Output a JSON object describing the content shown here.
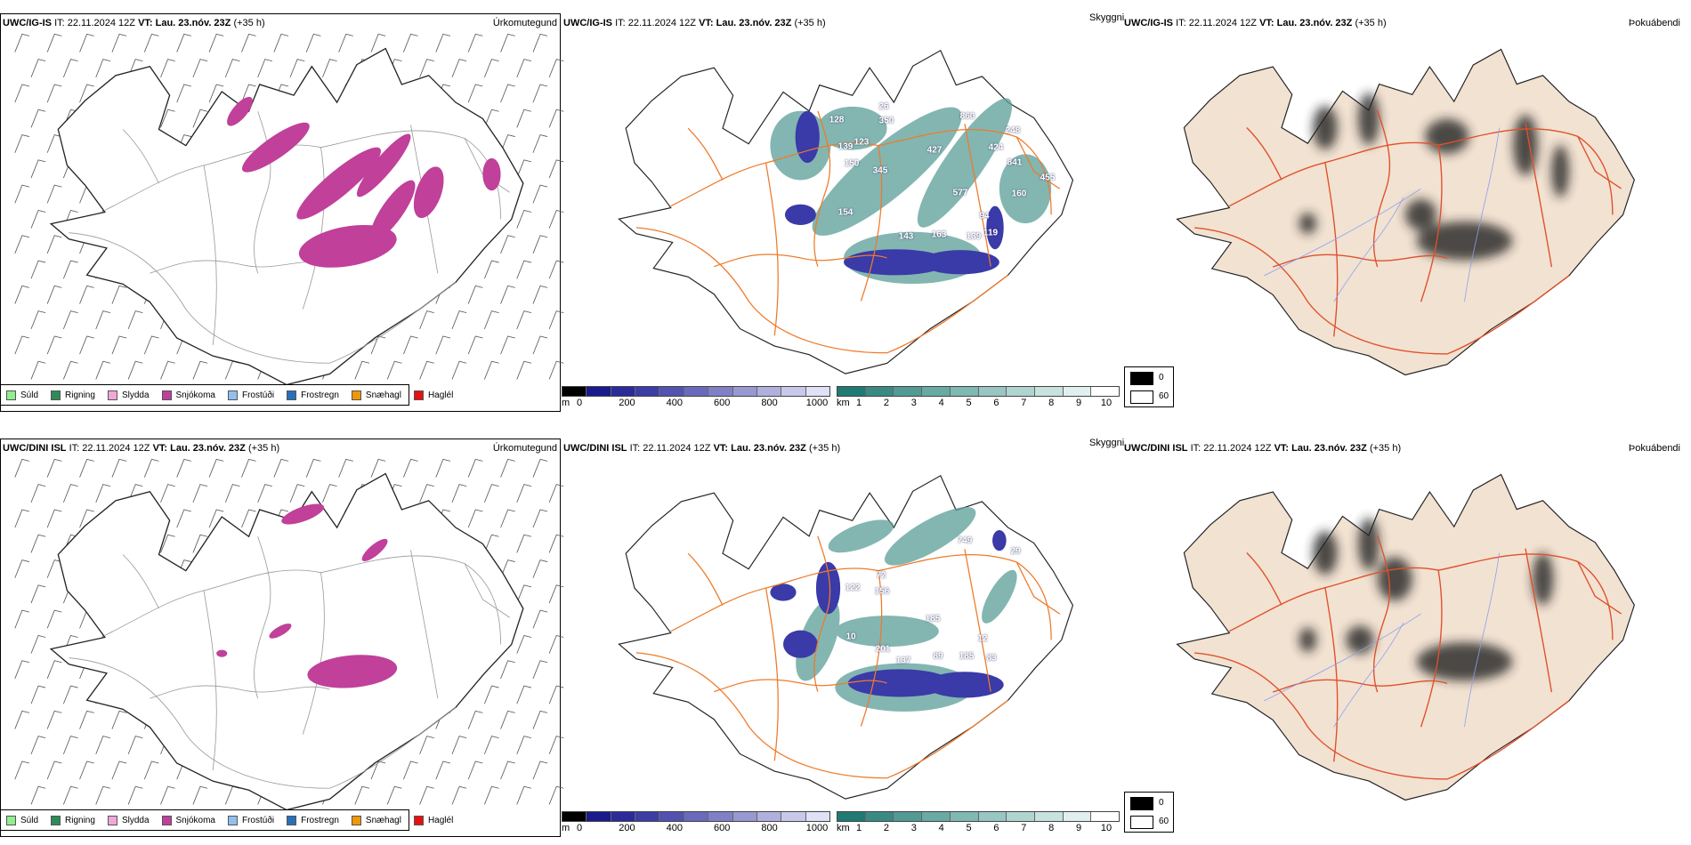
{
  "rows": [
    {
      "panels": [
        {
          "model": "UWC/IG-IS",
          "it_label": "IT:",
          "it_value": "22.11.2024 12Z",
          "vt_label": "VT:",
          "vt_value": "Lau. 23.nóv. 23Z",
          "lead": "(+35 h)",
          "title": "Úrkomutegund"
        },
        {
          "model": "UWC/IG-IS",
          "it_label": "IT:",
          "it_value": "22.11.2024 12Z",
          "vt_label": "VT:",
          "vt_value": "Lau. 23.nóv. 23Z",
          "lead": "(+35 h)",
          "title": "Skyggni"
        },
        {
          "model": "UWC/IG-IS",
          "it_label": "IT:",
          "it_value": "22.11.2024 12Z",
          "vt_label": "VT:",
          "vt_value": "Lau. 23.nóv. 23Z",
          "lead": "(+35 h)",
          "title": "Þokuábendi"
        }
      ],
      "visibility_labels": [
        "128",
        "26",
        "350",
        "139",
        "123",
        "150",
        "345",
        "860",
        "427",
        "424",
        "248",
        "841",
        "455",
        "577",
        "160",
        "154",
        "143",
        "163",
        "139",
        "119",
        "94"
      ]
    },
    {
      "panels": [
        {
          "model": "UWC/DINI ISL",
          "it_label": "IT:",
          "it_value": "22.11.2024 12Z",
          "vt_label": "VT:",
          "vt_value": "Lau. 23.nóv. 23Z",
          "lead": "(+35 h)",
          "title": "Úrkomutegund"
        },
        {
          "model": "UWC/DINI ISL",
          "it_label": "IT:",
          "it_value": "22.11.2024 12Z",
          "vt_label": "VT:",
          "vt_value": "Lau. 23.nóv. 23Z",
          "lead": "(+35 h)",
          "title": "Skyggni"
        },
        {
          "model": "UWC/DINI ISL",
          "it_label": "IT:",
          "it_value": "22.11.2024 12Z",
          "vt_label": "VT:",
          "vt_value": "Lau. 23.nóv. 23Z",
          "lead": "(+35 h)",
          "title": "Þokuábendi"
        }
      ],
      "visibility_labels": [
        "749",
        "29",
        "72",
        "122",
        "156",
        "185",
        "10",
        "201",
        "137",
        "89",
        "185",
        "83",
        "12"
      ]
    }
  ],
  "precip_legend": [
    {
      "label": "Súld",
      "color": "#90ee90"
    },
    {
      "label": "Rigning",
      "color": "#2e8b57"
    },
    {
      "label": "Slydda",
      "color": "#f0a8d8"
    },
    {
      "label": "Snjókoma",
      "color": "#c0409a"
    },
    {
      "label": "Frostúði",
      "color": "#90c0f0"
    },
    {
      "label": "Frostregn",
      "color": "#2a70b8"
    },
    {
      "label": "Snæhagl",
      "color": "#f0960a"
    },
    {
      "label": "Haglél",
      "color": "#e81010"
    }
  ],
  "ceiling_bar": {
    "unit": "m",
    "ticks": [
      "0",
      "200",
      "400",
      "600",
      "800",
      "1000"
    ],
    "colors": [
      "#000000",
      "#1a1a8c",
      "#2b2b9a",
      "#3d3da6",
      "#5252b0",
      "#6a6abc",
      "#8080c6",
      "#9898d2",
      "#b0b0de",
      "#c8c8ea",
      "#e0e0f6"
    ]
  },
  "visibility_bar": {
    "unit": "km",
    "ticks": [
      "1",
      "2",
      "3",
      "4",
      "5",
      "6",
      "7",
      "8",
      "9",
      "10"
    ],
    "colors": [
      "#1f7a74",
      "#3a8a84",
      "#529a94",
      "#68aaa4",
      "#80b8b2",
      "#98c6c2",
      "#b0d4d0",
      "#c8e2de",
      "#e0f0ee",
      "#ffffff"
    ]
  },
  "fog_legend": {
    "items": [
      {
        "label": "0",
        "color": "#000000"
      },
      {
        "label": "60",
        "color": "#ffffff"
      }
    ]
  },
  "colors": {
    "snow": "#c0409a",
    "teal": "#5a9e98",
    "blue": "#3a3aa8",
    "land_fog": "#f2e2d2",
    "road": "#ee7a2a",
    "river": "#8aa0f0"
  }
}
